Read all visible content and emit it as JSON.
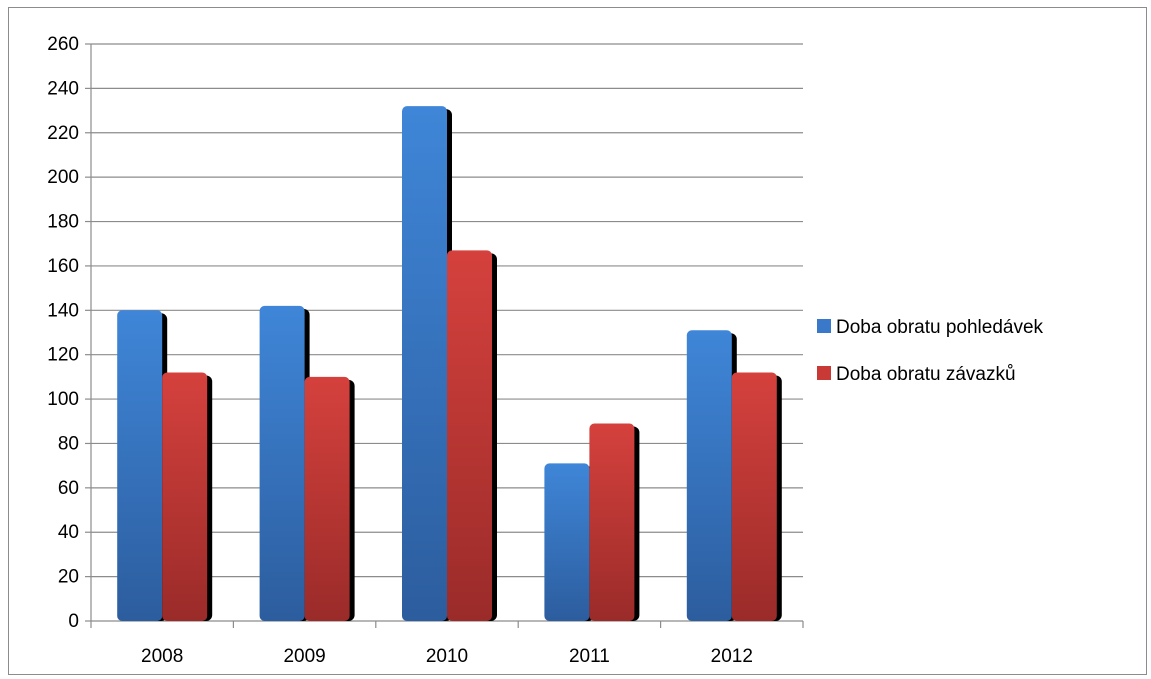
{
  "chart_data": {
    "type": "bar",
    "title": "",
    "xlabel": "",
    "ylabel": "",
    "categories": [
      "2008",
      "2009",
      "2010",
      "2011",
      "2012"
    ],
    "series": [
      {
        "name": "Doba obratu pohledávek",
        "color": "#3a78c9",
        "values": [
          140,
          142,
          232,
          71,
          131
        ]
      },
      {
        "name": "Doba obratu závazků",
        "color": "#c93a37",
        "values": [
          112,
          110,
          167,
          89,
          112
        ]
      }
    ],
    "ylim": [
      0,
      260
    ],
    "yticks": [
      0,
      20,
      40,
      60,
      80,
      100,
      120,
      140,
      160,
      180,
      200,
      220,
      240,
      260
    ],
    "grid": true,
    "legend_position": "right"
  }
}
